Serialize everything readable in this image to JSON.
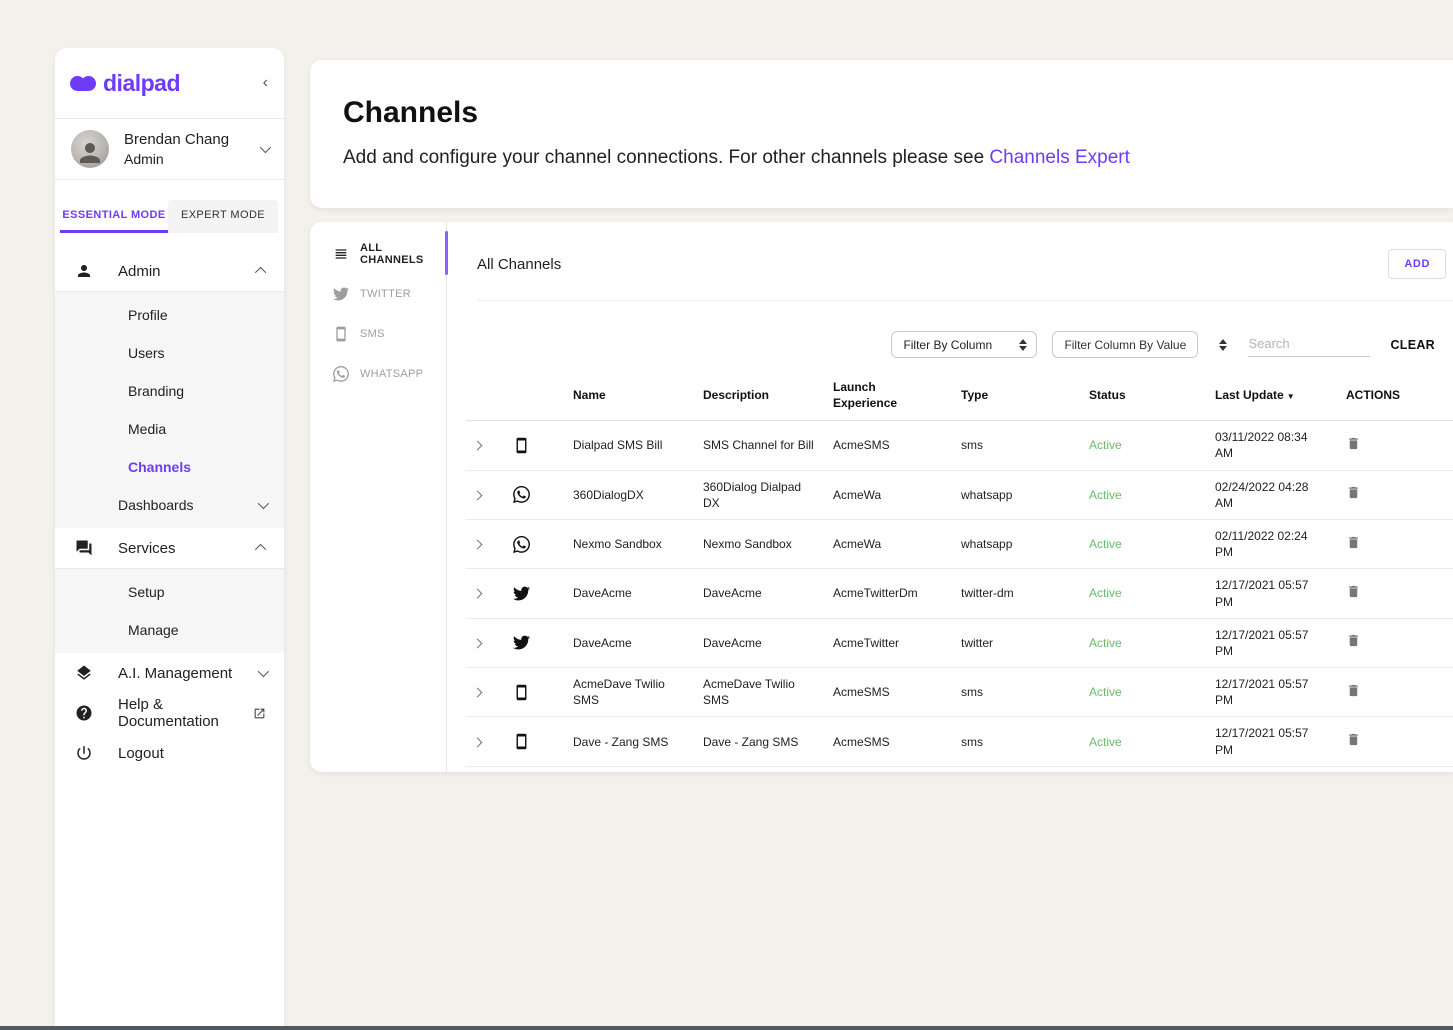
{
  "sidebar": {
    "brand": "dialpad",
    "collapse_icon": "‹",
    "user_name": "Brendan Chang",
    "user_role": "Admin",
    "tab_essential": "ESSENTIAL MODE",
    "tab_expert": "EXPERT MODE",
    "admin_label": "Admin",
    "admin_items": [
      "Profile",
      "Users",
      "Branding",
      "Media",
      "Channels"
    ],
    "active_admin_item": "Channels",
    "dashboards_label": "Dashboards",
    "services_label": "Services",
    "services_items": [
      "Setup",
      "Manage"
    ],
    "ai_label": "A.I. Management",
    "help_label": "Help & Documentation",
    "logout_label": "Logout"
  },
  "header": {
    "title": "Channels",
    "subtitle": "Add and configure your channel connections. For other channels please see ",
    "subtitle_link": "Channels Expert"
  },
  "channel_nav": {
    "items": [
      {
        "label": "ALL CHANNELS",
        "icon": "list-icon",
        "active": true
      },
      {
        "label": "TWITTER",
        "icon": "twitter-icon",
        "active": false
      },
      {
        "label": "SMS",
        "icon": "sms-phone-icon",
        "active": false
      },
      {
        "label": "WHATSAPP",
        "icon": "whatsapp-icon",
        "active": false
      }
    ]
  },
  "content": {
    "heading": "All Channels",
    "add_button": "ADD",
    "filters": {
      "filter_by_column": "Filter By Column",
      "filter_by_value_placeholder": "Filter Column By Value",
      "search_placeholder": "Search",
      "clear_button": "CLEAR"
    },
    "table": {
      "columns": [
        "Name",
        "Description",
        "Launch Experience",
        "Type",
        "Status",
        "Last Update",
        "ACTIONS"
      ],
      "sort_column": "Last Update",
      "sort_indicator": "▼",
      "rows": [
        {
          "icon": "sms-phone-icon",
          "name": "Dialpad SMS Bill",
          "description": "SMS Channel for Bill",
          "launch_experience": "AcmeSMS",
          "type": "sms",
          "status": "Active",
          "last_update": "03/11/2022 08:34 AM"
        },
        {
          "icon": "whatsapp-icon",
          "name": "360DialogDX",
          "description": "360Dialog Dialpad DX",
          "launch_experience": "AcmeWa",
          "type": "whatsapp",
          "status": "Active",
          "last_update": "02/24/2022 04:28 AM"
        },
        {
          "icon": "whatsapp-icon",
          "name": "Nexmo Sandbox",
          "description": "Nexmo Sandbox",
          "launch_experience": "AcmeWa",
          "type": "whatsapp",
          "status": "Active",
          "last_update": "02/11/2022 02:24 PM"
        },
        {
          "icon": "twitter-icon",
          "name": "DaveAcme",
          "description": "DaveAcme",
          "launch_experience": "AcmeTwitterDm",
          "type": "twitter-dm",
          "status": "Active",
          "last_update": "12/17/2021 05:57 PM"
        },
        {
          "icon": "twitter-icon",
          "name": "DaveAcme",
          "description": "DaveAcme",
          "launch_experience": "AcmeTwitter",
          "type": "twitter",
          "status": "Active",
          "last_update": "12/17/2021 05:57 PM"
        },
        {
          "icon": "sms-phone-icon",
          "name": "AcmeDave Twilio SMS",
          "description": "AcmeDave Twilio SMS",
          "launch_experience": "AcmeSMS",
          "type": "sms",
          "status": "Active",
          "last_update": "12/17/2021 05:57 PM"
        },
        {
          "icon": "sms-phone-icon",
          "name": "Dave - Zang SMS",
          "description": "Dave - Zang SMS",
          "launch_experience": "AcmeSMS",
          "type": "sms",
          "status": "Active",
          "last_update": "12/17/2021 05:57 PM"
        }
      ]
    }
  },
  "colors": {
    "accent": "#6f3bfa",
    "status_active": "#66bb6a",
    "background": "#f4f1ec"
  }
}
